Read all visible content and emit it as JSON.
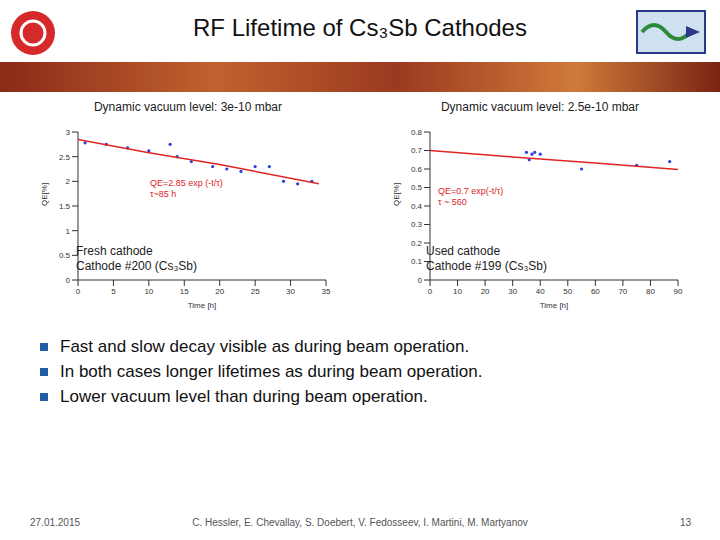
{
  "slide": {
    "title": "RF Lifetime of Cs₃Sb Cathodes",
    "bullets": [
      "Fast and slow decay visible as during beam operation.",
      "In both cases longer lifetimes as during beam operation.",
      "Lower vacuum level than during beam operation."
    ],
    "footer": {
      "date": "27.01.2015",
      "authors": "C. Hessler, E. Chevallay, S. Doebert, V. Fedosseev, I. Martini, M. Martyanov",
      "page": "13"
    }
  },
  "chart_data": [
    {
      "type": "scatter",
      "title": "Dynamic vacuum level: 3e-10 mbar",
      "x_label": "Time [h]",
      "y_label": "QE[%]",
      "xlim": [
        0,
        35
      ],
      "xticks": [
        0,
        5,
        10,
        15,
        20,
        25,
        30,
        35
      ],
      "ylim": [
        0,
        3
      ],
      "yticks": [
        0,
        0.5,
        1,
        1.5,
        2,
        2.5,
        3
      ],
      "grid": false,
      "annotations": [
        "QE=2.85 exp (-t/τ)",
        "τ~85 h"
      ],
      "labels": [
        "Fresh cathode",
        "Cathode #200 (Cs₃Sb)"
      ],
      "series": [
        {
          "type": "scatter",
          "marker": "dot",
          "color": "#2a3fd6",
          "x": [
            1,
            4,
            7,
            10,
            13,
            14,
            16,
            19,
            21,
            23,
            25,
            27,
            29,
            31,
            33
          ],
          "values": [
            2.78,
            2.75,
            2.68,
            2.62,
            2.75,
            2.5,
            2.4,
            2.3,
            2.25,
            2.2,
            2.3,
            2.3,
            2.0,
            1.95,
            2.0
          ]
        },
        {
          "type": "line",
          "line_style": "solid",
          "color": "#e02424",
          "x": [
            0,
            10,
            20,
            34
          ],
          "values": [
            2.85,
            2.58,
            2.34,
            1.95
          ]
        }
      ]
    },
    {
      "type": "scatter",
      "title": "Dynamic vacuum level: 2.5e-10 mbar",
      "x_label": "Time [h]",
      "y_label": "QE[%]",
      "xlim": [
        0,
        90
      ],
      "xticks": [
        0,
        10,
        20,
        30,
        40,
        50,
        60,
        70,
        80,
        90
      ],
      "ylim": [
        0,
        0.8
      ],
      "yticks": [
        0,
        0.1,
        0.2,
        0.3,
        0.4,
        0.5,
        0.6,
        0.7,
        0.8
      ],
      "grid": false,
      "annotations": [
        "QE=0.7 exp(-t/τ)",
        "τ ~ 560"
      ],
      "labels": [
        "Used cathode",
        "Cathode #199 (Cs₃Sb)"
      ],
      "series": [
        {
          "type": "scatter",
          "marker": "dot",
          "color": "#2a3fd6",
          "x": [
            35,
            36,
            37,
            38,
            40,
            55,
            75,
            87
          ],
          "values": [
            0.69,
            0.65,
            0.68,
            0.69,
            0.68,
            0.6,
            0.62,
            0.64
          ]
        },
        {
          "type": "line",
          "line_style": "solid",
          "color": "#e02424",
          "x": [
            0,
            30,
            60,
            90
          ],
          "values": [
            0.7,
            0.665,
            0.632,
            0.597
          ]
        }
      ]
    }
  ]
}
